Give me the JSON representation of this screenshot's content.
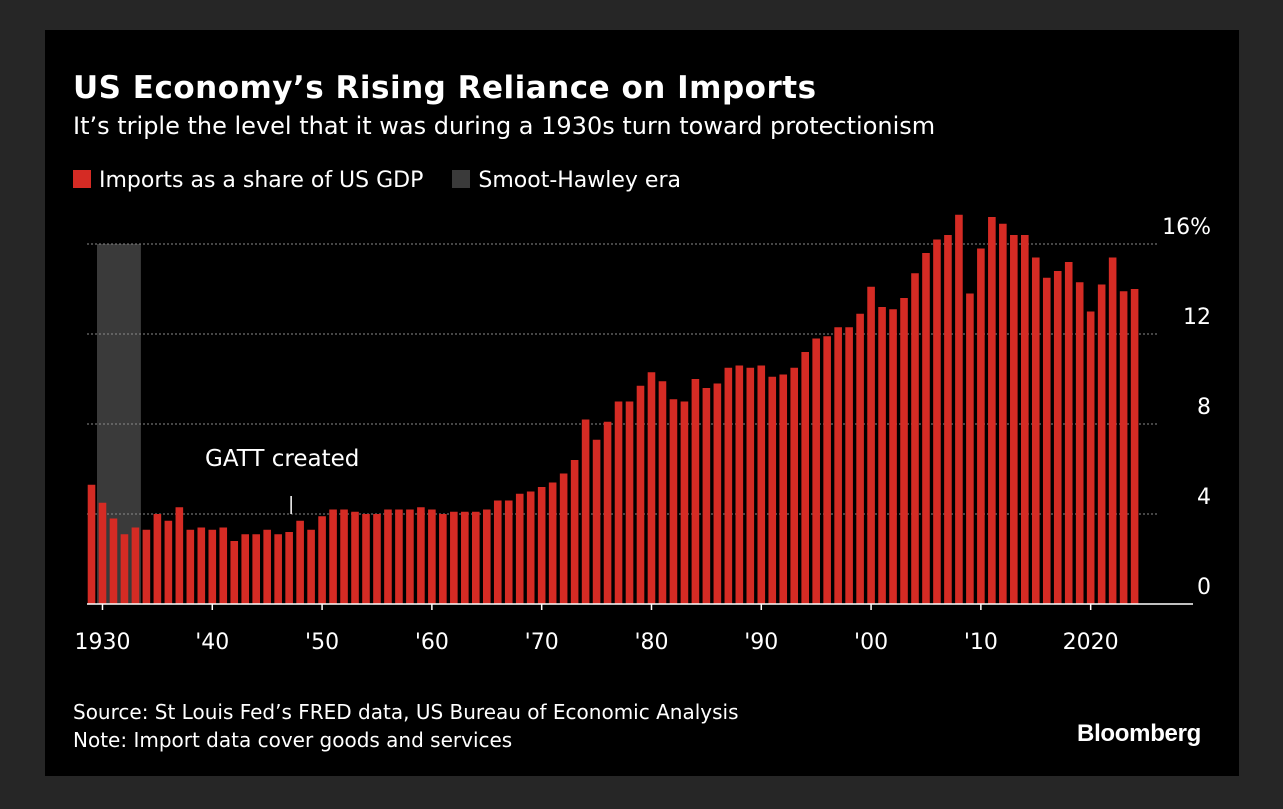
{
  "header": {
    "title": "US Economy’s Rising Reliance on Imports",
    "subtitle": "It’s triple the level that it was during a 1930s turn toward protectionism"
  },
  "legend": {
    "items": [
      {
        "label": "Imports as a share of US GDP",
        "color": "#d52b24"
      },
      {
        "label": "Smoot-Hawley era",
        "color": "#3a3a3a"
      }
    ]
  },
  "footer": {
    "source": "Source: St Louis Fed’s FRED data, US Bureau of Economic Analysis",
    "note": "Note: Import data cover goods and services",
    "brand": "Bloomberg"
  },
  "chart_data": {
    "type": "bar",
    "title": "US Economy’s Rising Reliance on Imports",
    "subtitle": "It’s triple the level that it was during a 1930s turn toward protectionism",
    "xlabel": "",
    "ylabel": "",
    "ylim": [
      0,
      16
    ],
    "grid": true,
    "legend_position": "top-left",
    "bar_color": "#d52b24",
    "shade_color": "#3a3a3a",
    "y_ticks": [
      {
        "value": 0,
        "label": "0"
      },
      {
        "value": 4,
        "label": "4"
      },
      {
        "value": 8,
        "label": "8"
      },
      {
        "value": 12,
        "label": "12"
      },
      {
        "value": 16,
        "label": "16%"
      }
    ],
    "x_ticks": [
      {
        "year": 1930,
        "label": "1930"
      },
      {
        "year": 1940,
        "label": "'40"
      },
      {
        "year": 1950,
        "label": "'50"
      },
      {
        "year": 1960,
        "label": "'60"
      },
      {
        "year": 1970,
        "label": "'70"
      },
      {
        "year": 1980,
        "label": "'80"
      },
      {
        "year": 1990,
        "label": "'90"
      },
      {
        "year": 2000,
        "label": "'00"
      },
      {
        "year": 2010,
        "label": "'10"
      },
      {
        "year": 2020,
        "label": "2020"
      }
    ],
    "shaded_range": {
      "label": "Smoot-Hawley era",
      "start_year": 1929.5,
      "end_year": 1933.5
    },
    "annotation": {
      "text": "GATT created",
      "year": 1947
    },
    "series": [
      {
        "name": "Imports as a share of US GDP",
        "years": [
          1929,
          1930,
          1931,
          1932,
          1933,
          1934,
          1935,
          1936,
          1937,
          1938,
          1939,
          1940,
          1941,
          1942,
          1943,
          1944,
          1945,
          1946,
          1947,
          1948,
          1949,
          1950,
          1951,
          1952,
          1953,
          1954,
          1955,
          1956,
          1957,
          1958,
          1959,
          1960,
          1961,
          1962,
          1963,
          1964,
          1965,
          1966,
          1967,
          1968,
          1969,
          1970,
          1971,
          1972,
          1973,
          1974,
          1975,
          1976,
          1977,
          1978,
          1979,
          1980,
          1981,
          1982,
          1983,
          1984,
          1985,
          1986,
          1987,
          1988,
          1989,
          1990,
          1991,
          1992,
          1993,
          1994,
          1995,
          1996,
          1997,
          1998,
          1999,
          2000,
          2001,
          2002,
          2003,
          2004,
          2005,
          2006,
          2007,
          2008,
          2009,
          2010,
          2011,
          2012,
          2013,
          2014,
          2015,
          2016,
          2017,
          2018,
          2019,
          2020,
          2021,
          2022,
          2023,
          2024
        ],
        "values": [
          5.3,
          4.5,
          3.8,
          3.1,
          3.4,
          3.3,
          4.0,
          3.7,
          4.3,
          3.3,
          3.4,
          3.3,
          3.4,
          2.8,
          3.1,
          3.1,
          3.3,
          3.1,
          3.2,
          3.7,
          3.3,
          3.9,
          4.2,
          4.2,
          4.1,
          4.0,
          4.0,
          4.2,
          4.2,
          4.2,
          4.3,
          4.2,
          4.0,
          4.1,
          4.1,
          4.1,
          4.2,
          4.6,
          4.6,
          4.9,
          5.0,
          5.2,
          5.4,
          5.8,
          6.4,
          8.2,
          7.3,
          8.1,
          9.0,
          9.0,
          9.7,
          10.3,
          9.9,
          9.1,
          9.0,
          10.0,
          9.6,
          9.8,
          10.5,
          10.6,
          10.5,
          10.6,
          10.1,
          10.2,
          10.5,
          11.2,
          11.8,
          11.9,
          12.3,
          12.3,
          12.9,
          14.1,
          13.2,
          13.1,
          13.6,
          14.7,
          15.6,
          16.2,
          16.4,
          17.3,
          13.8,
          15.8,
          17.2,
          16.9,
          16.4,
          16.4,
          15.4,
          14.5,
          14.8,
          15.2,
          14.3,
          13.0,
          14.2,
          15.4,
          13.9,
          14.0
        ]
      }
    ]
  }
}
